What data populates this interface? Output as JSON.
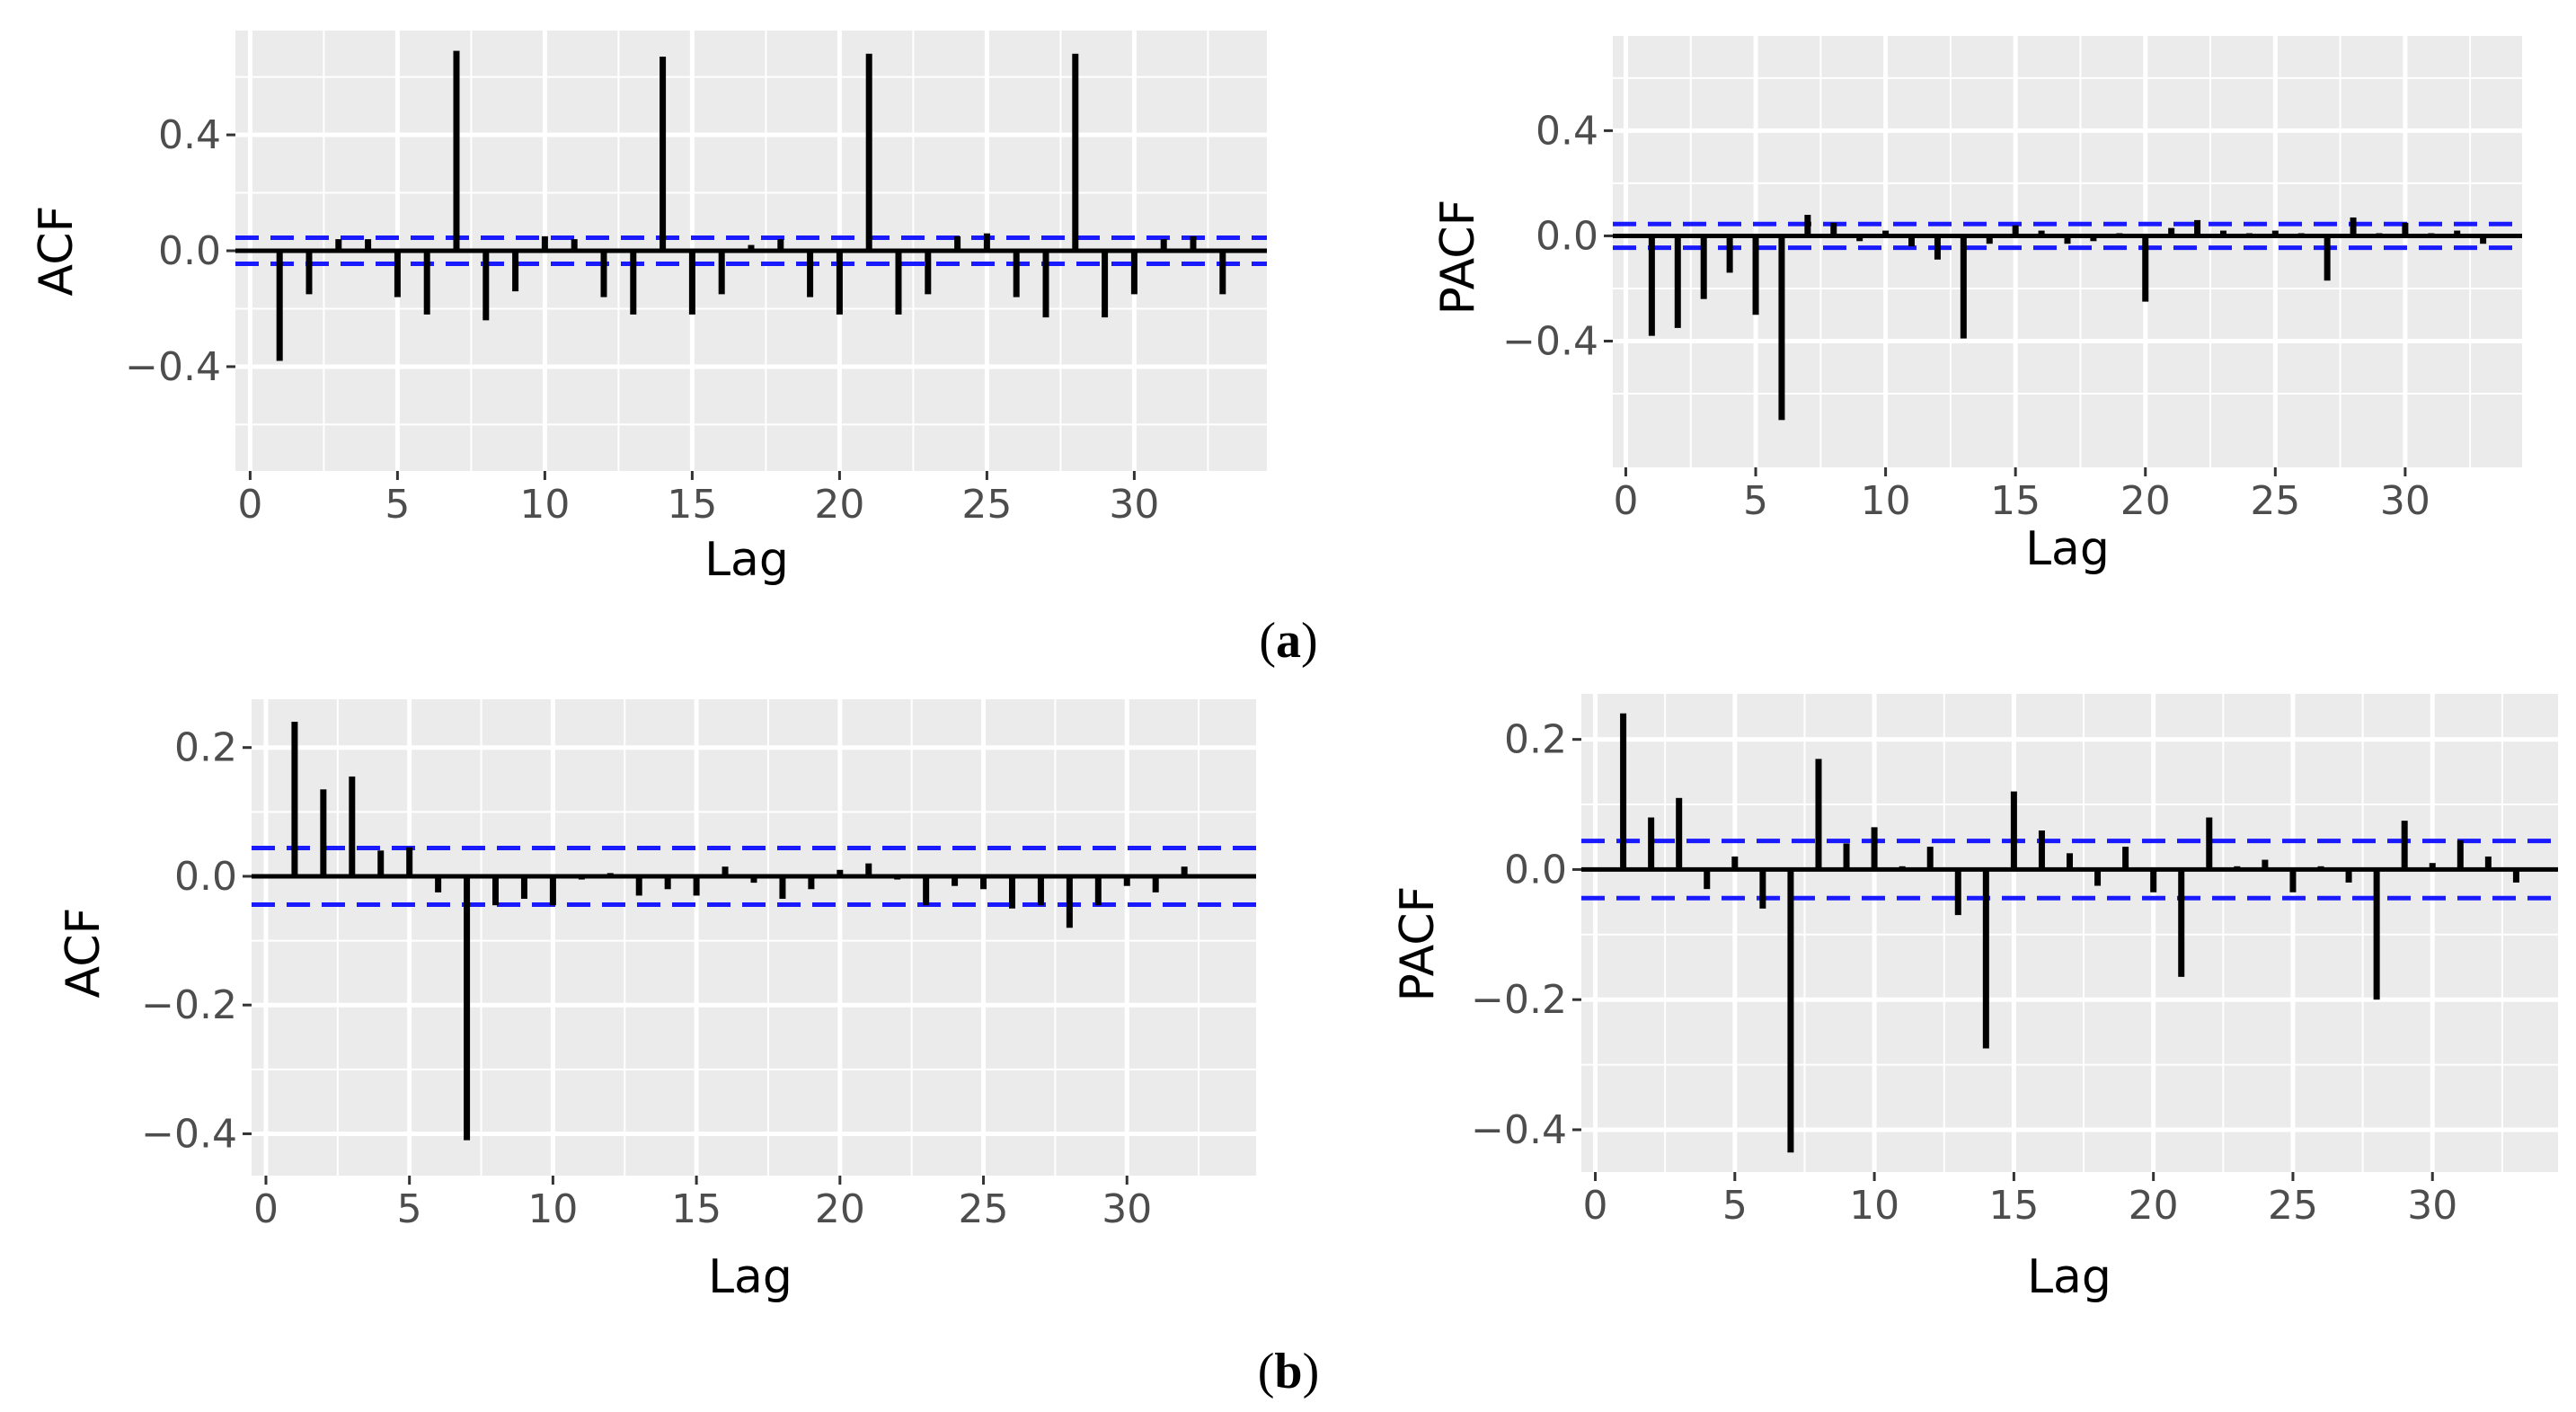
{
  "figure": {
    "captions": [
      {
        "open": "(",
        "letter": "a",
        "close": ")"
      },
      {
        "open": "(",
        "letter": "b",
        "close": ")"
      }
    ]
  },
  "colors": {
    "panel_bg": "#ebebeb",
    "grid": "#ffffff",
    "bar": "#000000",
    "ci": "#1a1aff",
    "tick_text": "#4d4d4d"
  },
  "chart_data": [
    {
      "type": "bar",
      "id": "a-acf",
      "xlabel": "Lag",
      "ylabel": "ACF",
      "xlim": [
        -0.5,
        34.5
      ],
      "ylim": [
        -0.76,
        0.76
      ],
      "xticks": [
        0,
        5,
        10,
        15,
        20,
        25,
        30
      ],
      "xtick_labels": [
        "0",
        "5",
        "10",
        "15",
        "20",
        "25",
        "30"
      ],
      "yticks": [
        0.4,
        0.0,
        -0.4
      ],
      "ytick_labels": [
        "0.4",
        "0.0",
        "-0.4"
      ],
      "ci": 0.045,
      "x": [
        1,
        2,
        3,
        4,
        5,
        6,
        7,
        8,
        9,
        10,
        11,
        12,
        13,
        14,
        15,
        16,
        17,
        18,
        19,
        20,
        21,
        22,
        23,
        24,
        25,
        26,
        27,
        28,
        29,
        30,
        31,
        32,
        33
      ],
      "values": [
        -0.38,
        -0.15,
        0.04,
        0.04,
        -0.16,
        -0.22,
        0.69,
        -0.24,
        -0.14,
        0.05,
        0.04,
        -0.16,
        -0.22,
        0.67,
        -0.22,
        -0.15,
        0.02,
        0.04,
        -0.16,
        -0.22,
        0.68,
        -0.22,
        -0.15,
        0.05,
        0.06,
        -0.16,
        -0.23,
        0.68,
        -0.23,
        -0.15,
        0.04,
        0.05,
        -0.15
      ]
    },
    {
      "type": "bar",
      "id": "a-pacf",
      "xlabel": "Lag",
      "ylabel": "PACF",
      "xlim": [
        -0.5,
        34.5
      ],
      "ylim": [
        -0.88,
        0.76
      ],
      "xticks": [
        0,
        5,
        10,
        15,
        20,
        25,
        30
      ],
      "xtick_labels": [
        "0",
        "5",
        "10",
        "15",
        "20",
        "25",
        "30"
      ],
      "yticks": [
        0.4,
        0.0,
        -0.4
      ],
      "ytick_labels": [
        "0.4",
        "0.0",
        "-0.4"
      ],
      "ci": 0.045,
      "x": [
        1,
        2,
        3,
        4,
        5,
        6,
        7,
        8,
        9,
        10,
        11,
        12,
        13,
        14,
        15,
        16,
        17,
        18,
        19,
        20,
        21,
        22,
        23,
        24,
        25,
        26,
        27,
        28,
        29,
        30,
        31,
        32,
        33
      ],
      "values": [
        -0.38,
        -0.35,
        -0.24,
        -0.14,
        -0.3,
        -0.7,
        0.08,
        0.05,
        -0.02,
        0.02,
        -0.04,
        -0.09,
        -0.39,
        -0.03,
        0.04,
        0.02,
        -0.03,
        -0.02,
        0.01,
        -0.25,
        0.03,
        0.06,
        0.02,
        0.01,
        0.02,
        0.01,
        -0.17,
        0.07,
        0.01,
        0.05,
        0.01,
        0.02,
        -0.03
      ]
    },
    {
      "type": "bar",
      "id": "b-acf",
      "xlabel": "Lag",
      "ylabel": "ACF",
      "xlim": [
        -0.5,
        34.5
      ],
      "ylim": [
        -0.465,
        0.275
      ],
      "xticks": [
        0,
        5,
        10,
        15,
        20,
        25,
        30
      ],
      "xtick_labels": [
        "0",
        "5",
        "10",
        "15",
        "20",
        "25",
        "30"
      ],
      "yticks": [
        0.2,
        0.0,
        -0.2,
        -0.4
      ],
      "ytick_labels": [
        "0.2",
        "0.0",
        "-0.2",
        "-0.4"
      ],
      "ci": 0.044,
      "x": [
        1,
        2,
        3,
        4,
        5,
        6,
        7,
        8,
        9,
        10,
        11,
        12,
        13,
        14,
        15,
        16,
        17,
        18,
        19,
        20,
        21,
        22,
        23,
        24,
        25,
        26,
        27,
        28,
        29,
        30,
        31,
        32
      ],
      "values": [
        0.24,
        0.135,
        0.155,
        0.04,
        0.045,
        -0.025,
        -0.41,
        -0.045,
        -0.035,
        -0.045,
        -0.005,
        0.005,
        -0.03,
        -0.02,
        -0.03,
        0.015,
        -0.01,
        -0.035,
        -0.02,
        0.01,
        0.02,
        -0.005,
        -0.045,
        -0.015,
        -0.02,
        -0.05,
        -0.045,
        -0.08,
        -0.045,
        -0.015,
        -0.025,
        0.015
      ]
    },
    {
      "type": "bar",
      "id": "b-pacf",
      "xlabel": "Lag",
      "ylabel": "PACF",
      "xlim": [
        -0.5,
        34.5
      ],
      "ylim": [
        -0.465,
        0.27
      ],
      "xticks": [
        0,
        5,
        10,
        15,
        20,
        25,
        30
      ],
      "xtick_labels": [
        "0",
        "5",
        "10",
        "15",
        "20",
        "25",
        "30"
      ],
      "yticks": [
        0.2,
        0.0,
        -0.2,
        -0.4
      ],
      "ytick_labels": [
        "0.2",
        "0.0",
        "-0.2",
        "-0.4"
      ],
      "ci": 0.044,
      "x": [
        1,
        2,
        3,
        4,
        5,
        6,
        7,
        8,
        9,
        10,
        11,
        12,
        13,
        14,
        15,
        16,
        17,
        18,
        19,
        20,
        21,
        22,
        23,
        24,
        25,
        26,
        27,
        28,
        29,
        30,
        31,
        32,
        33
      ],
      "values": [
        0.24,
        0.08,
        0.11,
        -0.03,
        0.02,
        -0.06,
        -0.435,
        0.17,
        0.04,
        0.065,
        0.005,
        0.035,
        -0.07,
        -0.275,
        0.12,
        0.06,
        0.025,
        -0.025,
        0.035,
        -0.035,
        -0.165,
        0.08,
        0.005,
        0.015,
        -0.035,
        0.005,
        -0.02,
        -0.2,
        0.075,
        0.01,
        0.045,
        0.02,
        -0.02
      ]
    }
  ]
}
